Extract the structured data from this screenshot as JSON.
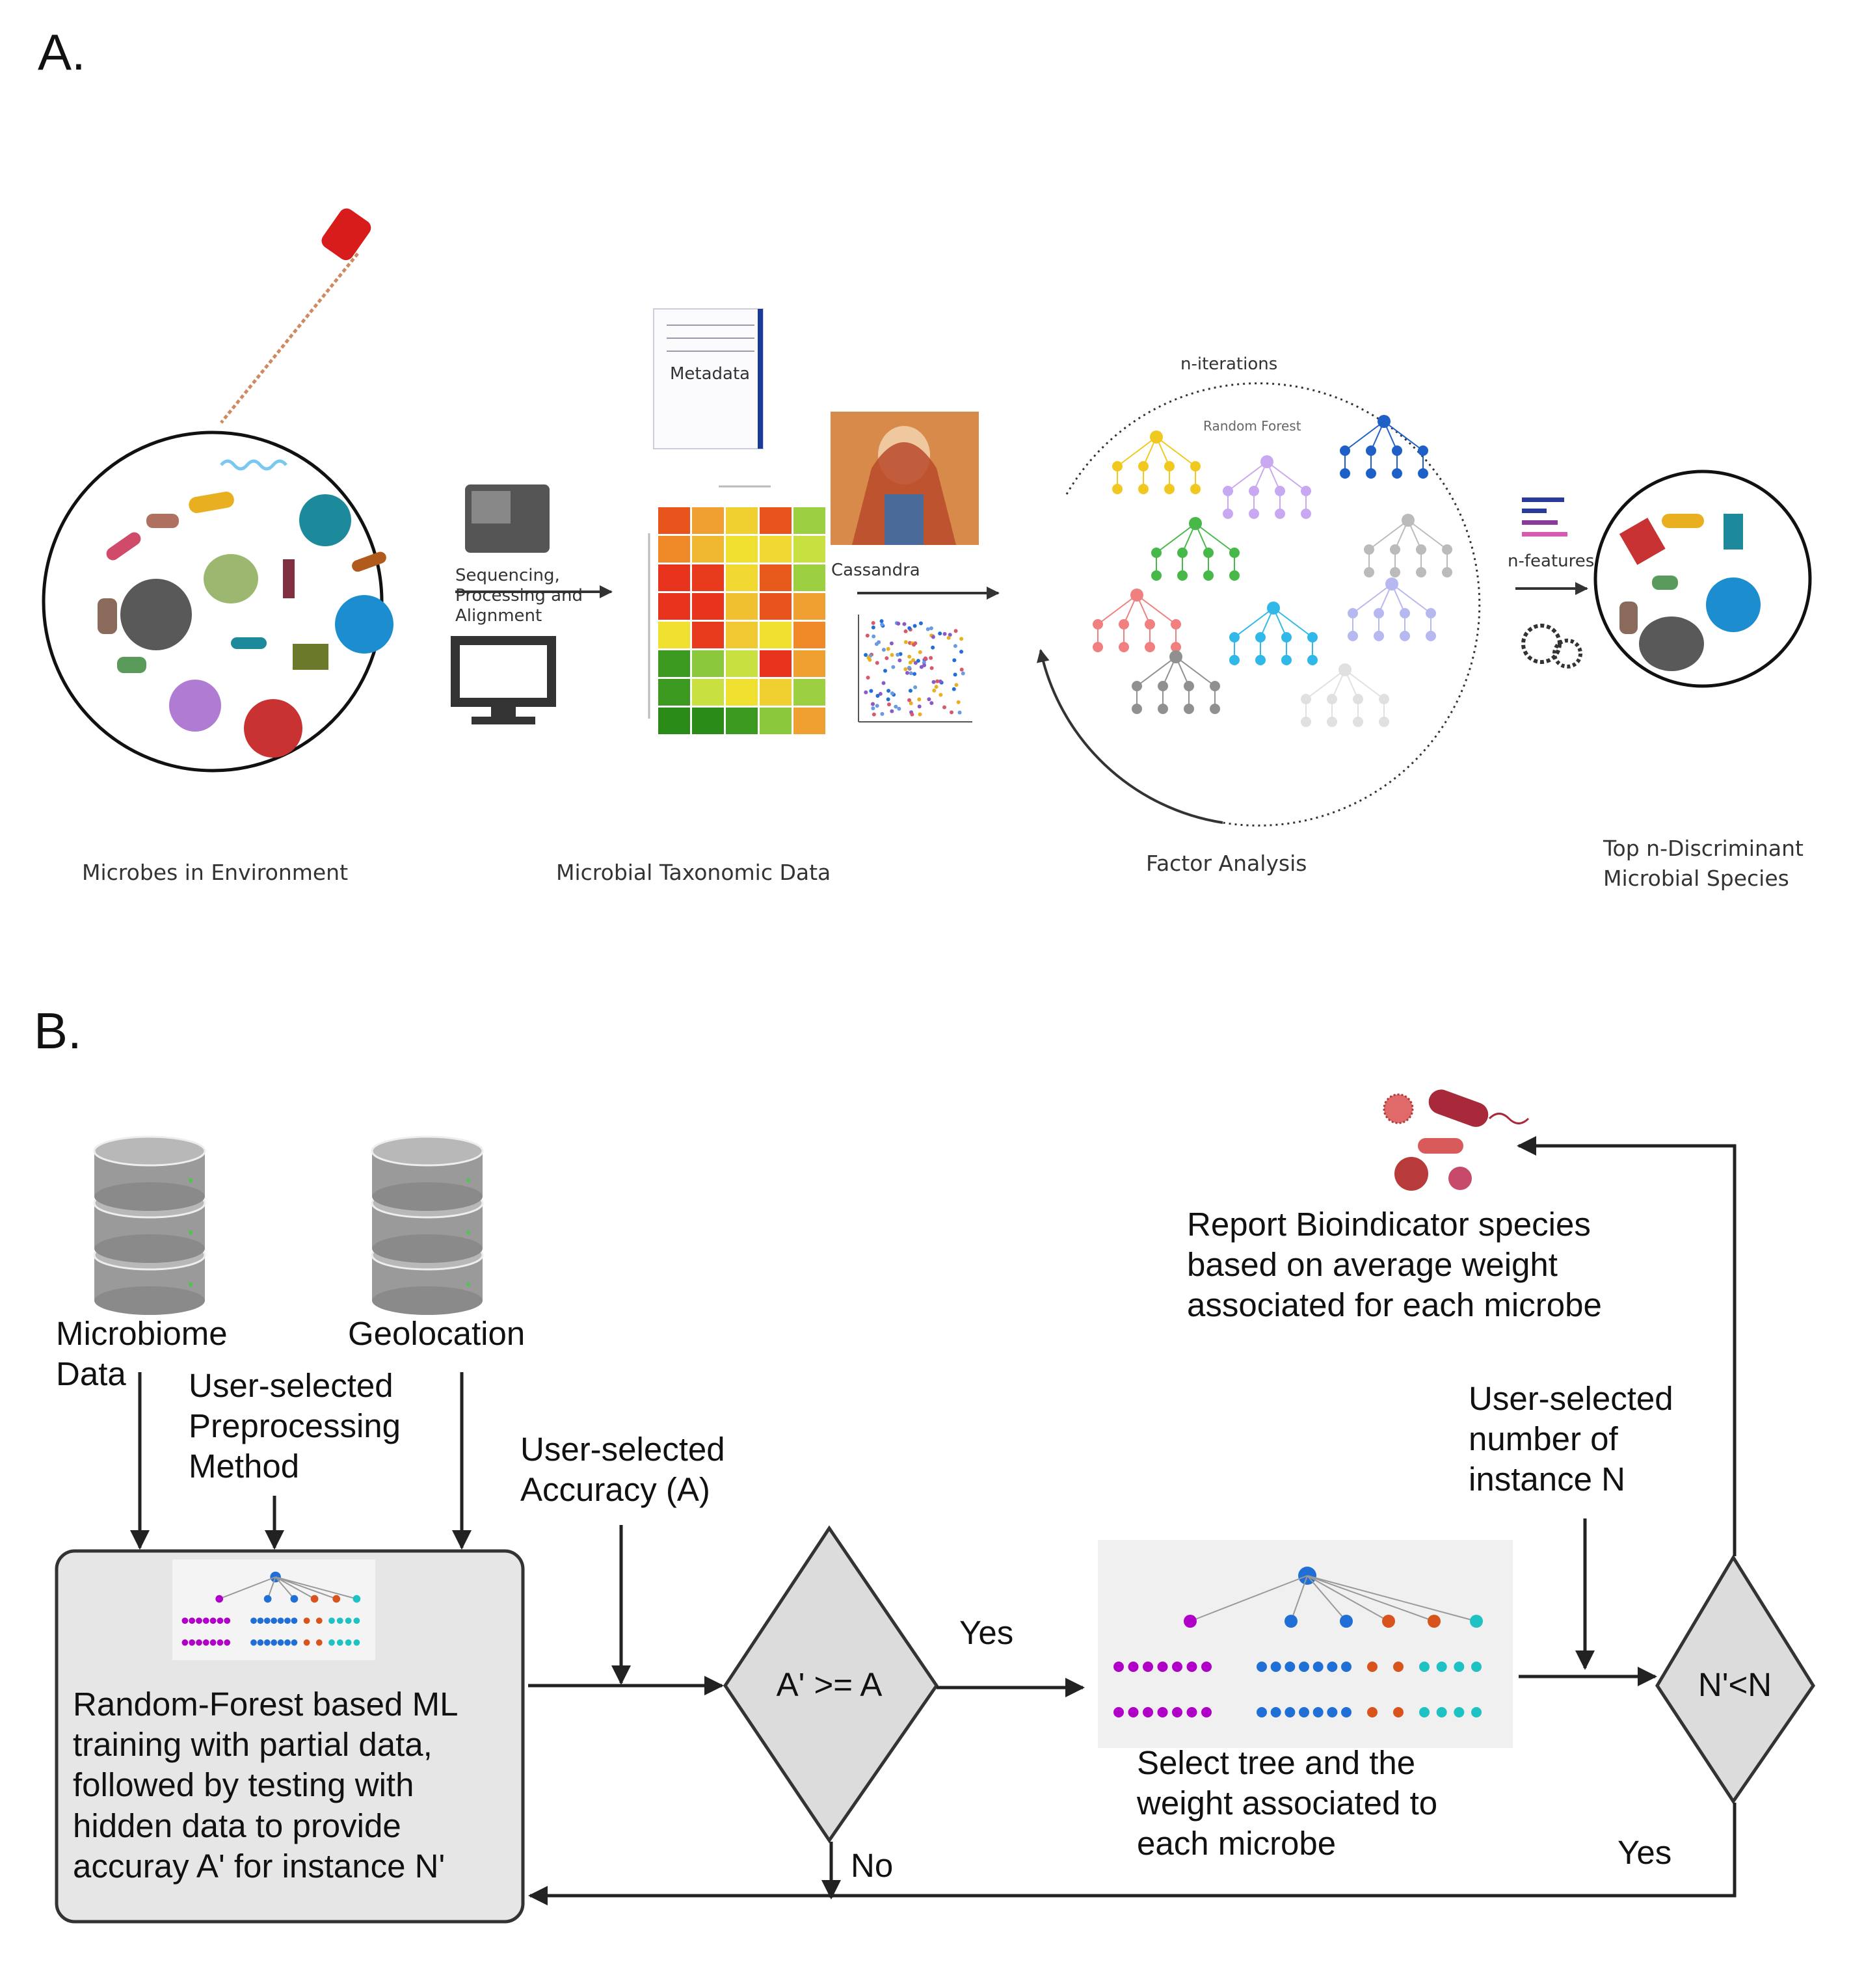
{
  "panel_a": {
    "label": "A.",
    "captions": {
      "microbes": "Microbes in Environment",
      "taxonomic": "Microbial Taxonomic Data",
      "factor": "Factor Analysis",
      "top": "Top n-Discriminant\nMicrobial Species"
    },
    "step_seq": "Sequencing,\nProcessing and\nAlignment",
    "metadata": "Metadata",
    "cassandra": "Cassandra",
    "n_iterations": "n-iterations",
    "random_forest": "Random Forest",
    "n_features": "n-features"
  },
  "panel_b": {
    "label": "B.",
    "microbiome": "Microbiome\nData",
    "geolocation": "Geolocation",
    "preprocessing": "User-selected\nPreprocessing\nMethod",
    "accuracy": "User-selected\nAccuracy (A)",
    "training": "Random-Forest based ML\ntraining with partial data,\nfollowed by testing with\nhidden data to provide\naccuray A' for instance N'",
    "decision1": "A' >= A",
    "yes1": "Yes",
    "no": "No",
    "select_tree": "Select tree and the\nweight associated to\neach microbe",
    "instances": "User-selected\nnumber of\ninstance N",
    "decision2": "N'<N",
    "yes2": "Yes",
    "report": "Report Bioindicator species\nbased on average weight\nassociated for each microbe"
  },
  "colors": {
    "box_fill": "#e6e6e6",
    "diamond_fill": "#dcdcdc",
    "line": "#222222",
    "tree_purple": "#b000c8",
    "tree_blue": "#1f6fd6",
    "tree_orange": "#d8541c",
    "tree_teal": "#1ec2c2"
  },
  "heatmap_colors": [
    [
      "#e8541c",
      "#f0a030",
      "#f0d030",
      "#e8541c",
      "#9cd040"
    ],
    [
      "#f08a28",
      "#f0b830",
      "#f0e030",
      "#f0d830",
      "#c8e040"
    ],
    [
      "#e8341c",
      "#e83a1c",
      "#f0d830",
      "#e85a1c",
      "#9cd040"
    ],
    [
      "#e8341c",
      "#e8341c",
      "#f0c030",
      "#e8541c",
      "#f0a030"
    ],
    [
      "#f0e030",
      "#e83a1c",
      "#f0c830",
      "#f0e030",
      "#f08a28"
    ],
    [
      "#3c9a20",
      "#8cc83c",
      "#c8e040",
      "#e8341c",
      "#f0a030"
    ],
    [
      "#3c9a20",
      "#c8e040",
      "#f0e030",
      "#f0d030",
      "#9cd040"
    ],
    [
      "#2a8a18",
      "#2a8a18",
      "#3c9a20",
      "#8cc83c",
      "#f0a030"
    ]
  ]
}
